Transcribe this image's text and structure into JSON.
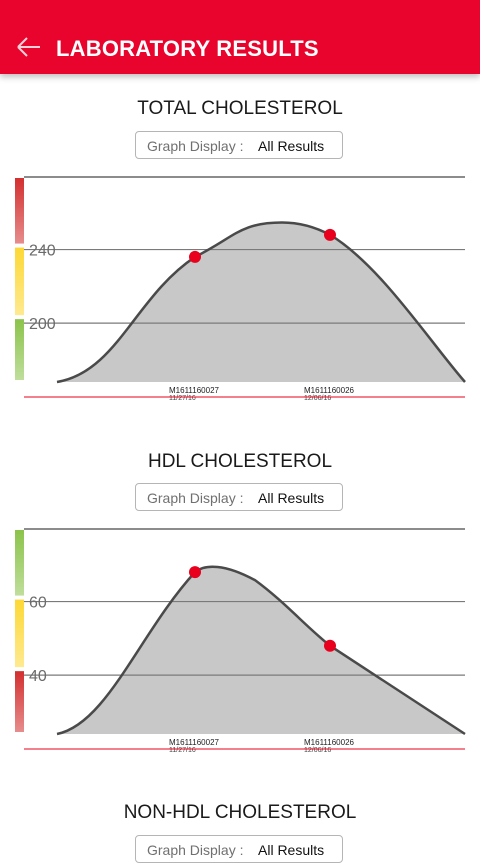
{
  "header": {
    "title": "LABORATORY RESULTS",
    "back_icon": "arrow-left-icon"
  },
  "graph_display": {
    "label": "Graph Display :",
    "value": "All Results"
  },
  "colors": {
    "brand_red": "#e8042c",
    "marker": "#e8001c",
    "fill": "#c8c8c8",
    "zone_red": "#d32f2f",
    "zone_yellow": "#fdd835",
    "zone_green": "#8bc34a"
  },
  "sections": [
    {
      "title": "TOTAL CHOLESTEROL",
      "zones_top_to_bottom": [
        "red",
        "yellow",
        "green"
      ]
    },
    {
      "title": "HDL CHOLESTEROL",
      "zones_top_to_bottom": [
        "green",
        "yellow",
        "red"
      ]
    },
    {
      "title": "NON-HDL CHOLESTEROL"
    }
  ],
  "chart_data": [
    {
      "type": "area",
      "title": "TOTAL CHOLESTEROL",
      "x": [
        "M1611160027\n11/27/16",
        "M1611160026\n12/06/16"
      ],
      "series": [
        {
          "values": [
            236,
            248
          ]
        }
      ],
      "y_ticks": [
        200,
        240
      ],
      "ylim": [
        168,
        280
      ],
      "grid": true
    },
    {
      "type": "area",
      "title": "HDL CHOLESTEROL",
      "x": [
        "M1611160027\n11/27/16",
        "M1611160026\n12/06/16"
      ],
      "series": [
        {
          "values": [
            68,
            48
          ]
        }
      ],
      "y_ticks": [
        40,
        60
      ],
      "ylim": [
        24,
        80
      ],
      "grid": true
    }
  ],
  "x_labels": [
    {
      "id": "M1611160027",
      "date": "11/27/16"
    },
    {
      "id": "M1611160026",
      "date": "12/06/16"
    }
  ]
}
